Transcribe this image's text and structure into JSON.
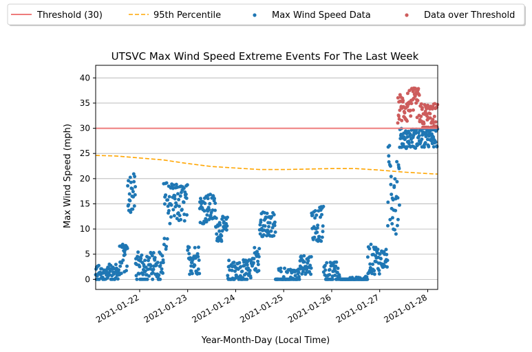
{
  "chart_data": {
    "type": "scatter",
    "title": "UTSVC Max Wind Speed Extreme Events For The Last Week",
    "xlabel": "Year-Month-Day (Local Time)",
    "ylabel": "Max Wind Speed (mph)",
    "ylim": [
      -2,
      42.5
    ],
    "xlim": [
      "2021-01-21T02:00",
      "2021-01-28T05:00"
    ],
    "yticks": [
      0,
      5,
      10,
      15,
      20,
      25,
      30,
      35,
      40
    ],
    "xticks": [
      "2021-01-22",
      "2021-01-23",
      "2021-01-24",
      "2021-01-25",
      "2021-01-26",
      "2021-01-27",
      "2021-01-28"
    ],
    "grid": "horizontal",
    "legend_placement": "top, above plot",
    "threshold": {
      "name": "Threshold (30)",
      "value": 30,
      "color": "#ee7b7b"
    },
    "percentile_95": {
      "name": "95th Percentile",
      "color": "#ffa500",
      "x": [
        "2021-01-21T02:00",
        "2021-01-21T12:00",
        "2021-01-22T00:00",
        "2021-01-22T12:00",
        "2021-01-23T00:00",
        "2021-01-23T12:00",
        "2021-01-24T00:00",
        "2021-01-24T12:00",
        "2021-01-25T00:00",
        "2021-01-25T12:00",
        "2021-01-26T00:00",
        "2021-01-26T12:00",
        "2021-01-27T00:00",
        "2021-01-27T12:00",
        "2021-01-28T00:00",
        "2021-01-28T05:00"
      ],
      "y": [
        24.6,
        24.5,
        24.1,
        23.7,
        23.0,
        22.4,
        22.1,
        21.8,
        21.8,
        21.9,
        22.0,
        22.0,
        21.7,
        21.3,
        21.0,
        20.9
      ]
    },
    "series": [
      {
        "name": "Max Wind Speed Data",
        "color": "#1f77b4",
        "segments": [
          {
            "start": "2021-01-21T02:00",
            "end": "2021-01-21T14:00",
            "base": 1.5,
            "spread": 1.5,
            "zeros": 0.18
          },
          {
            "start": "2021-01-21T14:00",
            "end": "2021-01-21T18:00",
            "base": 4,
            "spread": 3
          },
          {
            "start": "2021-01-21T18:00",
            "end": "2021-01-21T22:00",
            "base": 17,
            "spread": 4
          },
          {
            "start": "2021-01-21T22:00",
            "end": "2021-01-22T12:00",
            "base": 3,
            "spread": 2.5,
            "zeros": 0.08
          },
          {
            "start": "2021-01-22T12:00",
            "end": "2021-01-22T14:00",
            "base": 12,
            "spread": 9
          },
          {
            "start": "2021-01-22T14:00",
            "end": "2021-01-23T00:00",
            "base": 15,
            "spread": 4
          },
          {
            "start": "2021-01-23T00:00",
            "end": "2021-01-23T06:00",
            "base": 4,
            "spread": 3
          },
          {
            "start": "2021-01-23T06:00",
            "end": "2021-01-23T14:00",
            "base": 14,
            "spread": 3
          },
          {
            "start": "2021-01-23T14:00",
            "end": "2021-01-23T20:00",
            "base": 10,
            "spread": 2.5
          },
          {
            "start": "2021-01-23T20:00",
            "end": "2021-01-24T08:00",
            "base": 2,
            "spread": 2,
            "zeros": 0.25
          },
          {
            "start": "2021-01-24T08:00",
            "end": "2021-01-24T12:00",
            "base": 4,
            "spread": 2.5
          },
          {
            "start": "2021-01-24T12:00",
            "end": "2021-01-24T20:00",
            "base": 11,
            "spread": 2.5
          },
          {
            "start": "2021-01-24T20:00",
            "end": "2021-01-25T08:00",
            "base": 0.8,
            "spread": 1.5,
            "zeros": 0.5
          },
          {
            "start": "2021-01-25T08:00",
            "end": "2021-01-25T14:00",
            "base": 3,
            "spread": 2
          },
          {
            "start": "2021-01-25T14:00",
            "end": "2021-01-25T20:00",
            "base": 11,
            "spread": 3.5
          },
          {
            "start": "2021-01-25T20:00",
            "end": "2021-01-26T04:00",
            "base": 2,
            "spread": 1.5,
            "zeros": 0.2
          },
          {
            "start": "2021-01-26T04:00",
            "end": "2021-01-26T18:00",
            "base": 0,
            "spread": 0.6,
            "zeros": 0.8
          },
          {
            "start": "2021-01-26T18:00",
            "end": "2021-01-27T00:00",
            "base": 4,
            "spread": 3
          },
          {
            "start": "2021-01-27T00:00",
            "end": "2021-01-27T04:00",
            "base": 4,
            "spread": 2
          },
          {
            "start": "2021-01-27T04:00",
            "end": "2021-01-27T10:00",
            "base": 18,
            "spread": 9
          },
          {
            "start": "2021-01-27T10:00",
            "end": "2021-01-28T05:00",
            "base": 28,
            "spread": 2
          }
        ]
      },
      {
        "name": "Data over Threshold",
        "color": "#cd5c5c",
        "segments": [
          {
            "start": "2021-01-27T09:00",
            "end": "2021-01-27T14:00",
            "base": 34,
            "spread": 3
          },
          {
            "start": "2021-01-27T14:00",
            "end": "2021-01-27T20:00",
            "base": 35,
            "spread": 3
          },
          {
            "start": "2021-01-27T20:00",
            "end": "2021-01-28T05:00",
            "base": 32,
            "spread": 3
          }
        ]
      }
    ]
  },
  "legend": {
    "threshold_label": "Threshold (30)",
    "percentile_label": "95th Percentile",
    "data_label": "Max Wind Speed Data",
    "over_label": "Data over Threshold"
  }
}
